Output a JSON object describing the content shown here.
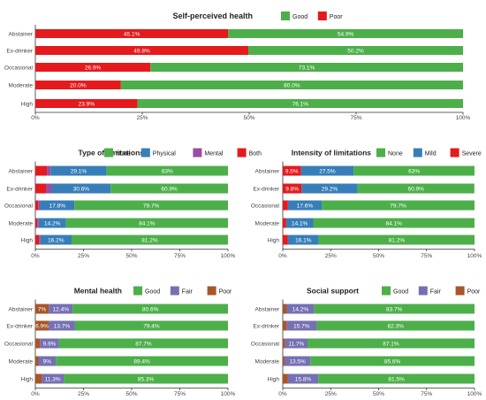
{
  "chart_data": [
    {
      "type": "bar",
      "orientation": "horizontal",
      "stacked": true,
      "title": "Self-perceived health",
      "categories": [
        "Abstainer",
        "Ex-drinker",
        "Occasional",
        "Moderate",
        "High"
      ],
      "series": [
        {
          "name": "Poor",
          "color": "#e41a1c",
          "values": [
            45.1,
            49.8,
            26.9,
            20.0,
            23.9
          ],
          "labels": [
            "45.1%",
            "49.8%",
            "26.9%",
            "20.0%",
            "23.9%"
          ]
        },
        {
          "name": "Good",
          "color": "#4daf4a",
          "values": [
            54.9,
            50.2,
            73.1,
            80.0,
            76.1
          ],
          "labels": [
            "54.9%",
            "50.2%",
            "73.1%",
            "80.0%",
            "76.1%"
          ]
        }
      ],
      "legend": [
        {
          "name": "Good",
          "color": "#4daf4a"
        },
        {
          "name": "Poor",
          "color": "#e41a1c"
        }
      ],
      "ticks": [
        "0%",
        "25%",
        "50%",
        "75%",
        "100%"
      ],
      "xlim": [
        0,
        100
      ],
      "legend_position": "top"
    },
    {
      "type": "bar",
      "orientation": "horizontal",
      "stacked": true,
      "title": "Type of limitations",
      "categories": [
        "Abstainer",
        "Ex-drinker",
        "Occasional",
        "Moderate",
        "High"
      ],
      "series": [
        {
          "name": "Both",
          "color": "#e41a1c",
          "values": [
            6.0,
            5.5,
            1.5,
            1.0,
            2.0
          ],
          "labels": [
            "",
            "",
            "",
            "",
            ""
          ]
        },
        {
          "name": "Mental",
          "color": "#984ea3",
          "values": [
            1.9,
            3.0,
            1.0,
            0.7,
            0.6
          ],
          "labels": [
            "",
            "",
            "",
            "",
            ""
          ]
        },
        {
          "name": "Physical",
          "color": "#377eb8",
          "values": [
            29.1,
            30.6,
            17.8,
            14.2,
            16.2
          ],
          "labels": [
            "29.1%",
            "30.6%",
            "17.8%",
            "14.2%",
            "16.2%"
          ]
        },
        {
          "name": "None",
          "color": "#4daf4a",
          "values": [
            63,
            60.9,
            79.7,
            84.1,
            81.2
          ],
          "labels": [
            "63%",
            "60.9%",
            "79.7%",
            "84.1%",
            "81.2%"
          ]
        }
      ],
      "legend": [
        {
          "name": "None",
          "color": "#4daf4a"
        },
        {
          "name": "Physical",
          "color": "#377eb8"
        },
        {
          "name": "Mental",
          "color": "#984ea3"
        },
        {
          "name": "Both",
          "color": "#e41a1c"
        }
      ],
      "ticks": [
        "0%",
        "25%",
        "50%",
        "75%",
        "100%"
      ],
      "xlim": [
        0,
        100
      ],
      "legend_position": "top"
    },
    {
      "type": "bar",
      "orientation": "horizontal",
      "stacked": true,
      "title": "Intensity of limitations",
      "categories": [
        "Abstainer",
        "Ex-drinker",
        "Occasional",
        "Moderate",
        "High"
      ],
      "series": [
        {
          "name": "Severe",
          "color": "#e41a1c",
          "values": [
            9.5,
            9.8,
            2.7,
            1.8,
            2.7
          ],
          "labels": [
            "9.5%",
            "9.8%",
            "",
            "",
            ""
          ]
        },
        {
          "name": "Mild",
          "color": "#377eb8",
          "values": [
            27.5,
            29.2,
            17.6,
            14.1,
            16.1
          ],
          "labels": [
            "27.5%",
            "29.2%",
            "17.6%",
            "14.1%",
            "16.1%"
          ]
        },
        {
          "name": "None",
          "color": "#4daf4a",
          "values": [
            63,
            60.9,
            79.7,
            84.1,
            81.2
          ],
          "labels": [
            "63%",
            "60.9%",
            "79.7%",
            "84.1%",
            "81.2%"
          ]
        }
      ],
      "legend": [
        {
          "name": "None",
          "color": "#4daf4a"
        },
        {
          "name": "Mild",
          "color": "#377eb8"
        },
        {
          "name": "Severe",
          "color": "#e41a1c"
        }
      ],
      "ticks": [
        "0%",
        "25%",
        "50%",
        "75%",
        "100%"
      ],
      "xlim": [
        0,
        100
      ],
      "legend_position": "top"
    },
    {
      "type": "bar",
      "orientation": "horizontal",
      "stacked": true,
      "title": "Mental health",
      "categories": [
        "Abstainer",
        "Ex-drinker",
        "Occasional",
        "Moderate",
        "High"
      ],
      "series": [
        {
          "name": "Poor",
          "color": "#a65628",
          "values": [
            7,
            6.9,
            2.4,
            1.6,
            3.4
          ],
          "labels": [
            "7%",
            "6.9%",
            "",
            "",
            ""
          ]
        },
        {
          "name": "Fair",
          "color": "#7570b3",
          "values": [
            12.4,
            13.7,
            9.9,
            9,
            11.3
          ],
          "labels": [
            "12.4%",
            "13.7%",
            "9.9%",
            "9%",
            "11.3%"
          ]
        },
        {
          "name": "Good",
          "color": "#4daf4a",
          "values": [
            80.6,
            79.4,
            87.7,
            89.4,
            85.3
          ],
          "labels": [
            "80.6%",
            "79.4%",
            "87.7%",
            "89.4%",
            "85.3%"
          ]
        }
      ],
      "legend": [
        {
          "name": "Good",
          "color": "#4daf4a"
        },
        {
          "name": "Fair",
          "color": "#7570b3"
        },
        {
          "name": "Poor",
          "color": "#a65628"
        }
      ],
      "ticks": [
        "0%",
        "25%",
        "50%",
        "75%",
        "100%"
      ],
      "xlim": [
        0,
        100
      ],
      "legend_position": "top"
    },
    {
      "type": "bar",
      "orientation": "horizontal",
      "stacked": true,
      "title": "Social support",
      "categories": [
        "Abstainer",
        "Ex-drinker",
        "Occasional",
        "Moderate",
        "High"
      ],
      "series": [
        {
          "name": "Poor",
          "color": "#a65628",
          "values": [
            2.1,
            2.0,
            1.2,
            0.9,
            2.7
          ],
          "labels": [
            "",
            "",
            "",
            "",
            ""
          ]
        },
        {
          "name": "Fair",
          "color": "#7570b3",
          "values": [
            14.2,
            15.7,
            11.7,
            13.5,
            15.8
          ],
          "labels": [
            "14.2%",
            "15.7%",
            "11.7%",
            "13.5%",
            "15.8%"
          ]
        },
        {
          "name": "Good",
          "color": "#4daf4a",
          "values": [
            83.7,
            82.3,
            87.1,
            85.6,
            81.5
          ],
          "labels": [
            "83.7%",
            "82.3%",
            "87.1%",
            "85.6%",
            "81.5%"
          ]
        }
      ],
      "legend": [
        {
          "name": "Good",
          "color": "#4daf4a"
        },
        {
          "name": "Fair",
          "color": "#7570b3"
        },
        {
          "name": "Poor",
          "color": "#a65628"
        }
      ],
      "ticks": [
        "0%",
        "25%",
        "50%",
        "75%",
        "100%"
      ],
      "xlim": [
        0,
        100
      ],
      "legend_position": "top"
    }
  ]
}
